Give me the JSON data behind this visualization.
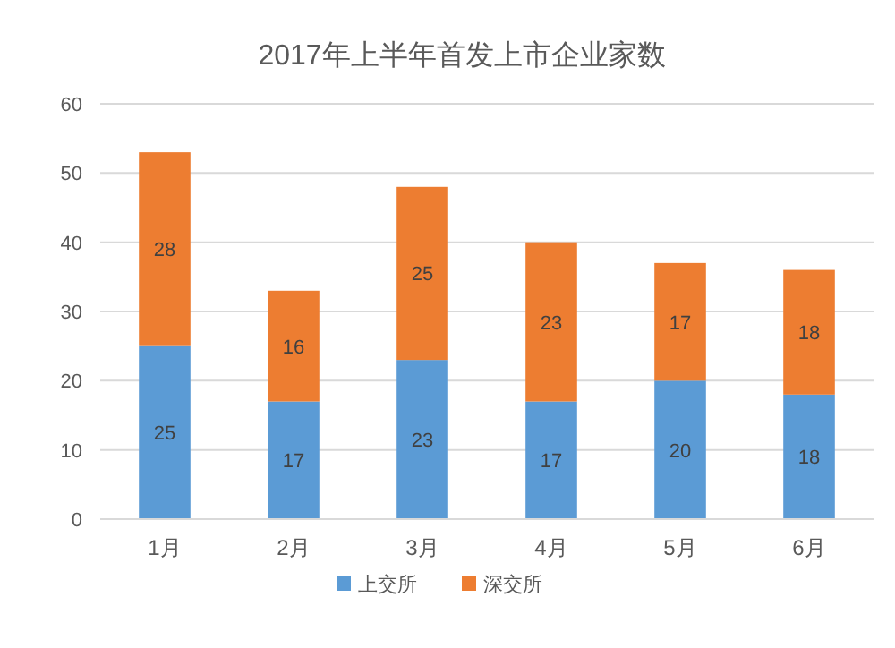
{
  "chart_data": {
    "type": "bar",
    "title": "2017年上半年首发上市企业家数",
    "categories": [
      "1月",
      "2月",
      "3月",
      "4月",
      "5月",
      "6月"
    ],
    "stacked": true,
    "series": [
      {
        "name": "上交所",
        "color": "#5b9bd5",
        "values": [
          25,
          17,
          23,
          17,
          20,
          18
        ]
      },
      {
        "name": "深交所",
        "color": "#ed7d31",
        "values": [
          28,
          16,
          25,
          23,
          17,
          18
        ]
      }
    ],
    "ylim": [
      0,
      60
    ],
    "yticks": [
      0,
      10,
      20,
      30,
      40,
      50,
      60
    ],
    "grid": "y",
    "legend": "bottom",
    "data_labels": true
  }
}
